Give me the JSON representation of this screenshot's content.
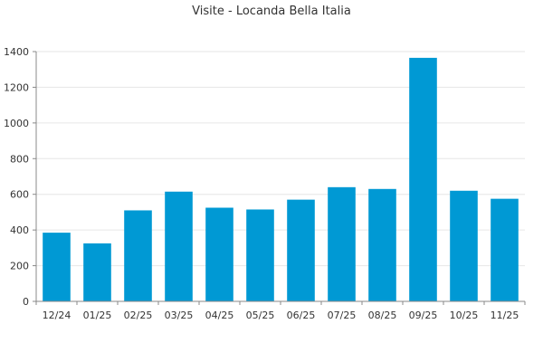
{
  "chart_data": {
    "type": "bar",
    "title": "Visite - Locanda Bella Italia",
    "xlabel": "",
    "ylabel": "",
    "categories": [
      "12/24",
      "01/25",
      "02/25",
      "03/25",
      "04/25",
      "05/25",
      "06/25",
      "07/25",
      "08/25",
      "09/25",
      "10/25",
      "11/25"
    ],
    "values": [
      385,
      325,
      510,
      615,
      525,
      515,
      570,
      640,
      630,
      1365,
      620,
      575
    ],
    "ylim": [
      0,
      1400
    ],
    "yticks": [
      0,
      200,
      400,
      600,
      800,
      1000,
      1200,
      1400
    ],
    "grid": true,
    "legend": "none",
    "bar_color": "#0099d4"
  }
}
